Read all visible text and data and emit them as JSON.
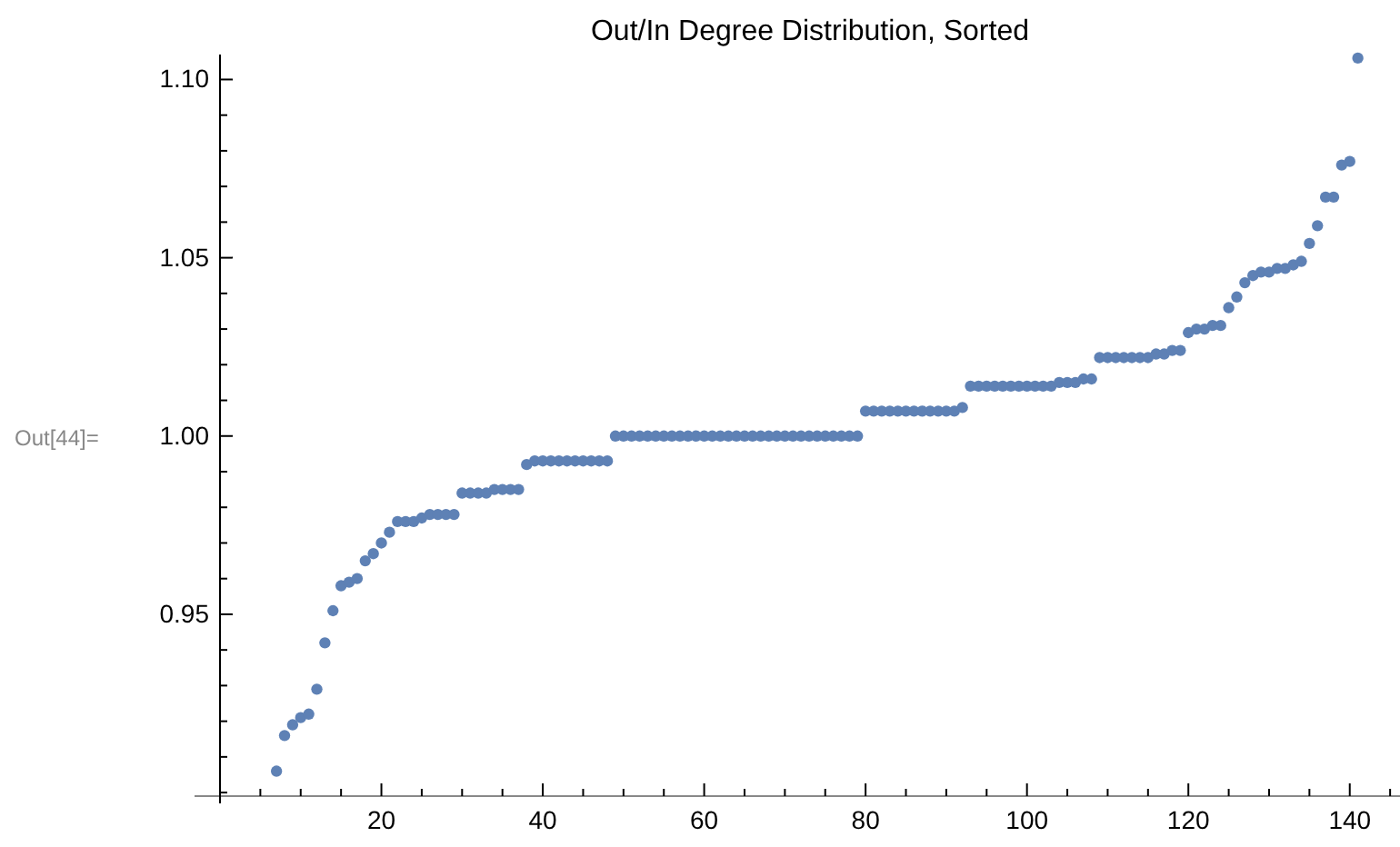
{
  "chart_data": {
    "type": "scatter",
    "title": "Out/In Degree Distribution, Sorted",
    "annotations": [
      "Out[44]="
    ],
    "marker": "circle",
    "grid": false,
    "xlim": [
      0,
      146
    ],
    "ylim": [
      0.899,
      1.107
    ],
    "xticks": [
      {
        "value": 5,
        "label": null
      },
      {
        "value": 10,
        "label": null
      },
      {
        "value": 15,
        "label": null
      },
      20,
      {
        "value": 25,
        "label": null
      },
      {
        "value": 30,
        "label": null
      },
      {
        "value": 35,
        "label": null
      },
      40,
      {
        "value": 45,
        "label": null
      },
      {
        "value": 50,
        "label": null
      },
      {
        "value": 55,
        "label": null
      },
      60,
      {
        "value": 65,
        "label": null
      },
      {
        "value": 70,
        "label": null
      },
      {
        "value": 75,
        "label": null
      },
      80,
      {
        "value": 85,
        "label": null
      },
      {
        "value": 90,
        "label": null
      },
      {
        "value": 95,
        "label": null
      },
      100,
      {
        "value": 105,
        "label": null
      },
      {
        "value": 110,
        "label": null
      },
      {
        "value": 115,
        "label": null
      },
      120,
      {
        "value": 125,
        "label": null
      },
      {
        "value": 130,
        "label": null
      },
      {
        "value": 135,
        "label": null
      },
      140,
      {
        "value": 145,
        "label": null
      }
    ],
    "yticks": [
      {
        "value": 0.9,
        "label": null
      },
      {
        "value": 0.91,
        "label": null
      },
      {
        "value": 0.92,
        "label": null
      },
      {
        "value": 0.93,
        "label": null
      },
      {
        "value": 0.94,
        "label": null
      },
      {
        "value": 0.95,
        "label": "0.95"
      },
      {
        "value": 0.96,
        "label": null
      },
      {
        "value": 0.97,
        "label": null
      },
      {
        "value": 0.98,
        "label": null
      },
      {
        "value": 0.99,
        "label": null
      },
      {
        "value": 1.0,
        "label": "1.00"
      },
      {
        "value": 1.01,
        "label": null
      },
      {
        "value": 1.02,
        "label": null
      },
      {
        "value": 1.03,
        "label": null
      },
      {
        "value": 1.04,
        "label": null
      },
      {
        "value": 1.05,
        "label": "1.05"
      },
      {
        "value": 1.06,
        "label": null
      },
      {
        "value": 1.07,
        "label": null
      },
      {
        "value": 1.08,
        "label": null
      },
      {
        "value": 1.09,
        "label": null
      },
      {
        "value": 1.1,
        "label": "1.10"
      }
    ],
    "series": [
      {
        "color": "#5e81b5",
        "x": [
          7,
          8,
          9,
          10,
          11,
          12,
          13,
          14,
          15,
          16,
          17,
          18,
          19,
          20,
          21,
          22,
          23,
          24,
          25,
          26,
          27,
          28,
          29,
          30,
          31,
          32,
          33,
          34,
          35,
          36,
          37,
          38,
          39,
          40,
          41,
          42,
          43,
          44,
          45,
          46,
          47,
          48,
          49,
          50,
          51,
          52,
          53,
          54,
          55,
          56,
          57,
          58,
          59,
          60,
          61,
          62,
          63,
          64,
          65,
          66,
          67,
          68,
          69,
          70,
          71,
          72,
          73,
          74,
          75,
          76,
          77,
          78,
          79,
          80,
          81,
          82,
          83,
          84,
          85,
          86,
          87,
          88,
          89,
          90,
          91,
          92,
          93,
          94,
          95,
          96,
          97,
          98,
          99,
          100,
          101,
          102,
          103,
          104,
          105,
          106,
          107,
          108,
          109,
          110,
          111,
          112,
          113,
          114,
          115,
          116,
          117,
          118,
          119,
          120,
          121,
          122,
          123,
          124,
          125,
          126,
          127,
          128,
          129,
          130,
          131,
          132,
          133,
          134,
          135,
          136,
          137,
          138,
          139,
          140,
          141
        ],
        "values": [
          0.906,
          0.916,
          0.919,
          0.921,
          0.922,
          0.929,
          0.942,
          0.951,
          0.958,
          0.959,
          0.96,
          0.965,
          0.967,
          0.97,
          0.973,
          0.976,
          0.976,
          0.976,
          0.977,
          0.978,
          0.978,
          0.978,
          0.978,
          0.984,
          0.984,
          0.984,
          0.984,
          0.985,
          0.985,
          0.985,
          0.985,
          0.992,
          0.993,
          0.993,
          0.993,
          0.993,
          0.993,
          0.993,
          0.993,
          0.993,
          0.993,
          0.993,
          1.0,
          1.0,
          1.0,
          1.0,
          1.0,
          1.0,
          1.0,
          1.0,
          1.0,
          1.0,
          1.0,
          1.0,
          1.0,
          1.0,
          1.0,
          1.0,
          1.0,
          1.0,
          1.0,
          1.0,
          1.0,
          1.0,
          1.0,
          1.0,
          1.0,
          1.0,
          1.0,
          1.0,
          1.0,
          1.0,
          1.0,
          1.007,
          1.007,
          1.007,
          1.007,
          1.007,
          1.007,
          1.007,
          1.007,
          1.007,
          1.007,
          1.007,
          1.007,
          1.008,
          1.014,
          1.014,
          1.014,
          1.014,
          1.014,
          1.014,
          1.014,
          1.014,
          1.014,
          1.014,
          1.014,
          1.015,
          1.015,
          1.015,
          1.016,
          1.016,
          1.022,
          1.022,
          1.022,
          1.022,
          1.022,
          1.022,
          1.022,
          1.023,
          1.023,
          1.024,
          1.024,
          1.029,
          1.03,
          1.03,
          1.031,
          1.031,
          1.036,
          1.039,
          1.043,
          1.045,
          1.046,
          1.046,
          1.047,
          1.047,
          1.048,
          1.049,
          1.054,
          1.059,
          1.067,
          1.067,
          1.076,
          1.077,
          1.106
        ]
      }
    ]
  }
}
